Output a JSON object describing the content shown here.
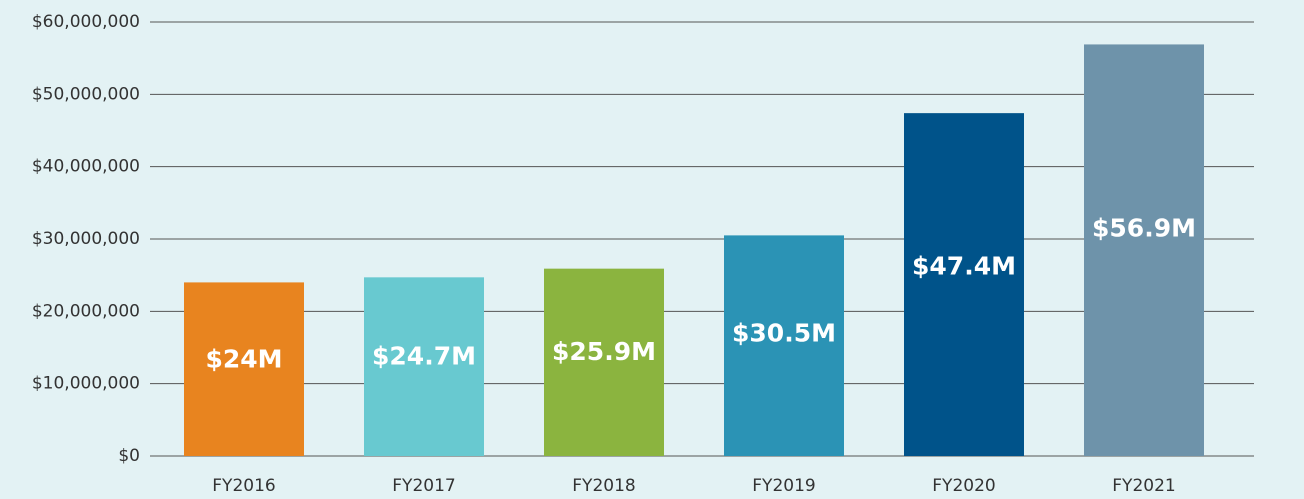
{
  "chart_data": {
    "type": "bar",
    "categories": [
      "FY2016",
      "FY2017",
      "FY2018",
      "FY2019",
      "FY2020",
      "FY2021"
    ],
    "values": [
      24000000,
      24700000,
      25900000,
      30500000,
      47400000,
      56900000
    ],
    "value_labels": [
      "$24M",
      "$24.7M",
      "$25.9M",
      "$30.5M",
      "$47.4M",
      "$56.9M"
    ],
    "colors": [
      "#e8841f",
      "#68c9d0",
      "#8bb43f",
      "#2b93b5",
      "#00538a",
      "#6e93aa"
    ],
    "ylim": [
      0,
      60000000
    ],
    "yticks": [
      {
        "value": 0,
        "label": "$0"
      },
      {
        "value": 10000000,
        "label": "$10,000,000"
      },
      {
        "value": 20000000,
        "label": "$20,000,000"
      },
      {
        "value": 30000000,
        "label": "$30,000,000"
      },
      {
        "value": 40000000,
        "label": "$40,000,000"
      },
      {
        "value": 50000000,
        "label": "$50,000,000"
      },
      {
        "value": 60000000,
        "label": "$60,000,000"
      }
    ],
    "grid": true
  }
}
